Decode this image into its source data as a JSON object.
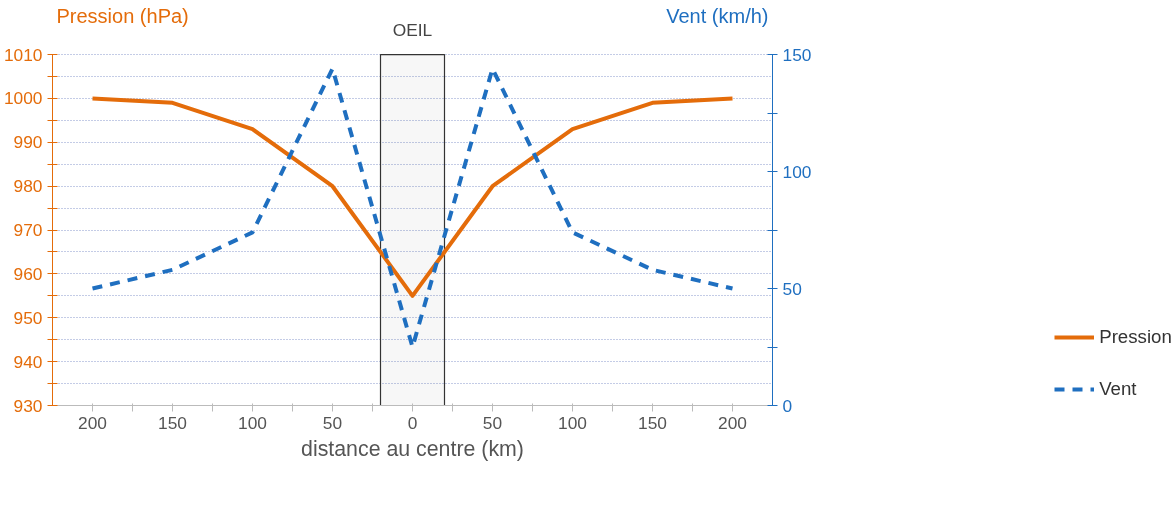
{
  "chart_data": {
    "type": "line",
    "xlabel": "distance au centre (km)",
    "ylabel": "Pression (hPa)",
    "y2label": "Vent (km/h)",
    "x": [
      -200,
      -150,
      -100,
      -50,
      0,
      50,
      100,
      150,
      200
    ],
    "series": [
      {
        "name": "Pression",
        "color": "#e46c0a",
        "line_style": "solid",
        "values": [
          1000,
          999,
          993,
          980,
          955,
          980,
          993,
          999,
          1000
        ]
      },
      {
        "name": "Vent",
        "color": "#1f6fc0",
        "line_style": "dashed",
        "axis": "y2",
        "values": [
          50,
          58,
          74,
          144,
          25,
          144,
          74,
          58,
          50
        ]
      }
    ],
    "xlim": [
      -225,
      225
    ],
    "xticks": [
      {
        "value": -200,
        "label": "200"
      },
      {
        "value": -175,
        "label": null
      },
      {
        "value": -150,
        "label": "150"
      },
      {
        "value": -125,
        "label": null
      },
      {
        "value": -100,
        "label": "100"
      },
      {
        "value": -75,
        "label": null
      },
      {
        "value": -50,
        "label": "50"
      },
      {
        "value": -25,
        "label": null
      },
      0,
      {
        "value": 25,
        "label": null
      },
      {
        "value": 50,
        "label": "50"
      },
      {
        "value": 75,
        "label": null
      },
      {
        "value": 100,
        "label": "100"
      },
      {
        "value": 125,
        "label": null
      },
      {
        "value": 150,
        "label": "150"
      },
      {
        "value": 175,
        "label": null
      },
      {
        "value": 200,
        "label": "200"
      }
    ],
    "ylim": [
      930,
      1010
    ],
    "yticks": [
      930,
      {
        "value": 935,
        "label": null
      },
      940,
      {
        "value": 945,
        "label": null
      },
      950,
      {
        "value": 955,
        "label": null
      },
      960,
      {
        "value": 965,
        "label": null
      },
      970,
      {
        "value": 975,
        "label": null
      },
      980,
      {
        "value": 985,
        "label": null
      },
      990,
      {
        "value": 995,
        "label": null
      },
      1000,
      {
        "value": 1005,
        "label": null
      },
      1010
    ],
    "y2lim": [
      0,
      150
    ],
    "y2ticks": [
      0,
      {
        "value": 25,
        "label": null
      },
      50,
      {
        "value": 75,
        "label": null
      },
      100,
      {
        "value": 125,
        "label": null
      },
      150
    ],
    "bands": [
      {
        "axis": "x",
        "from": -20,
        "to": 20,
        "label": "OEIL",
        "color": "#333333"
      }
    ],
    "grid": "y",
    "legend": "right",
    "marker": "none"
  }
}
